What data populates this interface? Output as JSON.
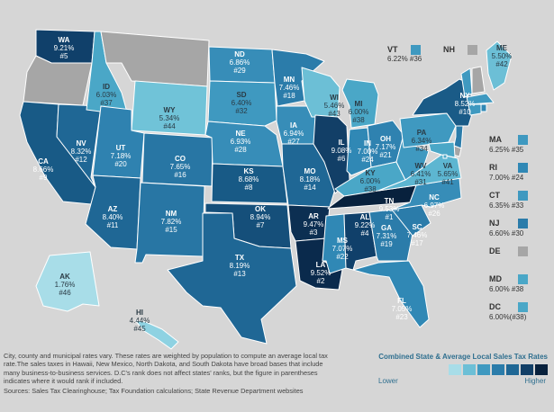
{
  "map": {
    "states": [
      {
        "code": "WA",
        "rate": "9.21%",
        "rank": "#5",
        "color": "#10406a"
      },
      {
        "code": "OR",
        "rate": "",
        "rank": "",
        "color": "#a6a6a6"
      },
      {
        "code": "CA",
        "rate": "8.66%",
        "rank": "#9",
        "color": "#185a86"
      },
      {
        "code": "NV",
        "rate": "8.32%",
        "rank": "#12",
        "color": "#1f6795"
      },
      {
        "code": "ID",
        "rate": "6.03%",
        "rank": "#37",
        "color": "#4aa7c7"
      },
      {
        "code": "MT",
        "rate": "",
        "rank": "",
        "color": "#a6a6a6"
      },
      {
        "code": "WY",
        "rate": "5.34%",
        "rank": "#44",
        "color": "#70c3d8"
      },
      {
        "code": "UT",
        "rate": "7.18%",
        "rank": "#20",
        "color": "#2f82b0"
      },
      {
        "code": "AZ",
        "rate": "8.40%",
        "rank": "#11",
        "color": "#1f6795"
      },
      {
        "code": "CO",
        "rate": "7.65%",
        "rank": "#16",
        "color": "#2876a4"
      },
      {
        "code": "NM",
        "rate": "7.82%",
        "rank": "#15",
        "color": "#2876a4"
      },
      {
        "code": "ND",
        "rate": "6.86%",
        "rank": "#29",
        "color": "#378db8"
      },
      {
        "code": "SD",
        "rate": "6.40%",
        "rank": "#32",
        "color": "#3f99c0"
      },
      {
        "code": "NE",
        "rate": "6.93%",
        "rank": "#28",
        "color": "#378db8"
      },
      {
        "code": "KS",
        "rate": "8.68%",
        "rank": "#8",
        "color": "#185a86"
      },
      {
        "code": "OK",
        "rate": "8.94%",
        "rank": "#7",
        "color": "#154f7a"
      },
      {
        "code": "TX",
        "rate": "8.19%",
        "rank": "#13",
        "color": "#1f6795"
      },
      {
        "code": "MN",
        "rate": "7.46%",
        "rank": "#18",
        "color": "#2b7caa"
      },
      {
        "code": "IA",
        "rate": "6.94%",
        "rank": "#27",
        "color": "#378db8"
      },
      {
        "code": "MO",
        "rate": "8.18%",
        "rank": "#14",
        "color": "#1f6795"
      },
      {
        "code": "AR",
        "rate": "9.47%",
        "rank": "#3",
        "color": "#0c2f52"
      },
      {
        "code": "LA",
        "rate": "9.52%",
        "rank": "#2",
        "color": "#0a2a4c"
      },
      {
        "code": "WI",
        "rate": "5.46%",
        "rank": "#43",
        "color": "#6cbfd6"
      },
      {
        "code": "IL",
        "rate": "9.08%",
        "rank": "#6",
        "color": "#123f67"
      },
      {
        "code": "MI",
        "rate": "6.00%",
        "rank": "#38",
        "color": "#4aa7c7"
      },
      {
        "code": "IN",
        "rate": "7.00%",
        "rank": "#24",
        "color": "#3088b5"
      },
      {
        "code": "OH",
        "rate": "7.17%",
        "rank": "#21",
        "color": "#2f82b0"
      },
      {
        "code": "KY",
        "rate": "6.00%",
        "rank": "#38",
        "color": "#4aa7c7"
      },
      {
        "code": "TN",
        "rate": "9.53%",
        "rank": "#1",
        "color": "#08213d"
      },
      {
        "code": "MS",
        "rate": "7.07%",
        "rank": "#22",
        "color": "#3088b5"
      },
      {
        "code": "AL",
        "rate": "9.22%",
        "rank": "#4",
        "color": "#10406a"
      },
      {
        "code": "GA",
        "rate": "7.31%",
        "rank": "#19",
        "color": "#2b7caa"
      },
      {
        "code": "FL",
        "rate": "7.05%",
        "rank": "#23",
        "color": "#3088b5"
      },
      {
        "code": "SC",
        "rate": "7.46%",
        "rank": "#17",
        "color": "#2b7caa"
      },
      {
        "code": "NC",
        "rate": "6.97%",
        "rank": "#26",
        "color": "#378db8"
      },
      {
        "code": "VA",
        "rate": "5.65%",
        "rank": "#41",
        "color": "#5db6d1"
      },
      {
        "code": "WV",
        "rate": "6.41%",
        "rank": "#31",
        "color": "#3f99c0"
      },
      {
        "code": "PA",
        "rate": "6.34%",
        "rank": "#34",
        "color": "#3f99c0"
      },
      {
        "code": "NY",
        "rate": "8.52%",
        "rank": "#10",
        "color": "#1a5b87"
      },
      {
        "code": "ME",
        "rate": "5.50%",
        "rank": "#42",
        "color": "#6cbfd6"
      },
      {
        "code": "VT",
        "rate": "",
        "rank": "",
        "color": "#3f99c0"
      },
      {
        "code": "NH",
        "rate": "",
        "rank": "",
        "color": "#a6a6a6"
      },
      {
        "code": "MA",
        "rate": "",
        "rank": "",
        "color": "#3f99c0"
      },
      {
        "code": "CT",
        "rate": "",
        "rank": "",
        "color": "#3f99c0"
      },
      {
        "code": "RI",
        "rate": "",
        "rank": "",
        "color": "#3088b5"
      },
      {
        "code": "NJ",
        "rate": "",
        "rank": "",
        "color": "#2b7caa"
      },
      {
        "code": "DE",
        "rate": "",
        "rank": "",
        "color": "#a6a6a6"
      },
      {
        "code": "MD",
        "rate": "",
        "rank": "",
        "color": "#4aa7c7"
      },
      {
        "code": "DC",
        "rate": "",
        "rank": "",
        "color": "#4aa7c7"
      },
      {
        "code": "AK",
        "rate": "1.76%",
        "rank": "#46",
        "color": "#a8dde8"
      },
      {
        "code": "HI",
        "rate": "4.44%",
        "rank": "#45",
        "color": "#8ed2e2"
      }
    ]
  },
  "callouts": {
    "vt": {
      "code": "VT",
      "text": "6.22% #36",
      "color": "#3f99c0"
    },
    "nh": {
      "code": "NH",
      "color": "#a6a6a6"
    },
    "side": [
      {
        "code": "MA",
        "text": "6.25% #35",
        "color": "#3f99c0"
      },
      {
        "code": "RI",
        "text": "7.00% #24",
        "color": "#3088b5"
      },
      {
        "code": "CT",
        "text": "6.35% #33",
        "color": "#3f99c0"
      },
      {
        "code": "NJ",
        "text": "6.60% #30",
        "color": "#2b7caa"
      },
      {
        "code": "DE",
        "text": "",
        "color": "#a6a6a6"
      },
      {
        "code": "MD",
        "text": "6.00% #38",
        "color": "#4aa7c7"
      },
      {
        "code": "DC",
        "text": "6.00%(#38)",
        "color": "#4aa7c7"
      }
    ]
  },
  "footnote": {
    "body": "City, county and municipal rates vary. These rates are weighted by population to compute an average local tax rate.The sales taxes in Hawaii, New Mexico, North Dakota, and South Dakota have broad bases that include many business-to-business services. D.C's rank does not affect states' ranks, but the figure in parentheses indicates where it would rank if included.",
    "sources": "Sources: Sales Tax Clearinghouse; Tax Foundation calculations; State Revenue Department websites"
  },
  "legend": {
    "title": "Combined State & Average Local Sales Tax Rates",
    "low": "Lower",
    "high": "Higher",
    "colors": [
      "#a8dde8",
      "#6cbfd6",
      "#3f99c0",
      "#2b7caa",
      "#1f6795",
      "#123f67",
      "#08213d"
    ]
  }
}
